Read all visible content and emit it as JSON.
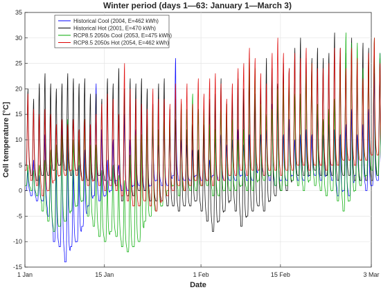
{
  "chart_data": {
    "type": "line",
    "title": "Winter period (days 1—63: January 1—March 3)",
    "xlabel": "Date",
    "ylabel": "Cell temperature [°C]",
    "xlim": [
      "2001-01-01",
      "2001-03-03"
    ],
    "x_tick_labels": [
      "1 Jan",
      "15 Jan",
      "1 Feb",
      "15 Feb",
      "3 Mar"
    ],
    "x_tick_dates": [
      "2001-01-01",
      "2001-01-15",
      "2001-02-01",
      "2001-02-15",
      "2001-03-03"
    ],
    "ylim": [
      -15,
      35
    ],
    "y_ticks": [
      -15,
      -10,
      -5,
      0,
      5,
      10,
      15,
      20,
      25,
      30,
      35
    ],
    "grid": true,
    "legend_position": "top-left",
    "sampling": "hourly",
    "series": [
      {
        "name": "Historical Cool (2004, E=462 kWh)",
        "color": "#0000ff",
        "daily_max": [
          4,
          6,
          3,
          11,
          5,
          4,
          13,
          10,
          4,
          5,
          8,
          13,
          21,
          12,
          6,
          10,
          5,
          15,
          10,
          12,
          17,
          13,
          15,
          9,
          12,
          12,
          26,
          10,
          9,
          8,
          8,
          11,
          6,
          10,
          11,
          9,
          10,
          12,
          9,
          11,
          18,
          11,
          12,
          17,
          17,
          11,
          14,
          10,
          11,
          12,
          11,
          15,
          11,
          13,
          12,
          11,
          13,
          16,
          11,
          13,
          16,
          23,
          27
        ],
        "daily_min": [
          0,
          -1,
          -2,
          -2,
          -5,
          -10,
          -11,
          -14,
          -11,
          -10,
          -7,
          -3,
          -1,
          -2,
          -1,
          0,
          2,
          0,
          0,
          1,
          1,
          0,
          1,
          2,
          1,
          1,
          3,
          2,
          2,
          2,
          3,
          2,
          2,
          3,
          2,
          2,
          2,
          2,
          3,
          2,
          2,
          4,
          3,
          2,
          1,
          2,
          2,
          3,
          2,
          2,
          3,
          3,
          2,
          3,
          2,
          -1,
          0,
          -1,
          3,
          2,
          0,
          1,
          2
        ]
      },
      {
        "name": "Historical Hot (2001, E=470 kWh)",
        "color": "#000000",
        "daily_max": [
          20,
          18,
          21,
          23,
          21,
          20,
          21,
          23,
          22,
          21,
          22,
          19,
          19,
          18,
          22,
          21,
          24,
          20,
          22,
          21,
          22,
          20,
          17,
          21,
          22,
          16,
          14,
          16,
          12,
          13,
          8,
          13,
          18,
          19,
          22,
          17,
          19,
          22,
          20,
          24,
          19,
          20,
          26,
          24,
          21,
          25,
          24,
          28,
          30,
          26,
          26,
          28,
          26,
          27,
          31,
          28,
          27,
          30,
          25,
          29,
          28,
          28,
          26
        ],
        "daily_min": [
          5,
          3,
          2,
          3,
          3,
          4,
          5,
          4,
          3,
          4,
          2,
          2,
          2,
          3,
          2,
          2,
          1,
          -2,
          -1,
          -1,
          0,
          0,
          -2,
          -2,
          -2,
          -3,
          -3,
          -4,
          -3,
          -3,
          -2,
          -4,
          -6,
          -8,
          -6,
          -4,
          -2,
          -4,
          -7,
          -5,
          -4,
          -3,
          -4,
          -2,
          -1,
          0,
          0,
          2,
          3,
          3,
          3,
          4,
          3,
          3,
          3,
          2,
          3,
          3,
          2,
          2,
          2,
          2,
          3
        ]
      },
      {
        "name": "RCP8.5 2050s Cool (2053, E=475 kWh)",
        "color": "#00aa00",
        "daily_max": [
          5,
          4,
          5,
          6,
          8,
          9,
          11,
          14,
          10,
          10,
          14,
          9,
          9,
          4,
          2,
          5,
          3,
          2,
          7,
          11,
          11,
          13,
          16,
          12,
          14,
          14,
          18,
          17,
          16,
          19,
          16,
          16,
          13,
          12,
          16,
          17,
          14,
          10,
          12,
          26,
          24,
          17,
          15,
          16,
          20,
          21,
          22,
          19,
          19,
          23,
          25,
          17,
          14,
          16,
          18,
          27,
          31,
          29,
          29,
          24,
          26,
          30,
          27
        ],
        "daily_min": [
          1,
          0,
          -1,
          -4,
          -6,
          -8,
          -7,
          -6,
          -4,
          -3,
          -2,
          -5,
          -7,
          -9,
          -10,
          -8,
          -9,
          -11,
          -12,
          -11,
          -10,
          -6,
          -5,
          -4,
          -3,
          0,
          1,
          -1,
          0,
          0,
          0,
          1,
          1,
          -1,
          -1,
          0,
          0,
          0,
          1,
          0,
          0,
          2,
          2,
          3,
          1,
          0,
          1,
          2,
          1,
          0,
          2,
          1,
          0,
          -1,
          0,
          -2,
          -4,
          -2,
          0,
          1,
          3,
          4,
          3
        ]
      },
      {
        "name": "RCP8.5 2050s Hot (2054, E=462 kWh)",
        "color": "#dd0000",
        "daily_max": [
          19,
          16,
          15,
          16,
          15,
          13,
          14,
          13,
          14,
          12,
          14,
          13,
          15,
          17,
          19,
          18,
          15,
          25,
          20,
          18,
          17,
          16,
          20,
          18,
          18,
          17,
          21,
          18,
          21,
          17,
          22,
          19,
          22,
          23,
          21,
          18,
          21,
          24,
          25,
          28,
          26,
          23,
          21,
          27,
          30,
          27,
          24,
          27,
          26,
          28,
          25,
          24,
          24,
          25,
          28,
          28,
          24,
          28,
          26,
          22,
          27,
          30,
          25
        ],
        "daily_min": [
          4,
          2,
          1,
          -1,
          0,
          2,
          3,
          3,
          4,
          3,
          2,
          1,
          2,
          1,
          0,
          1,
          0,
          -1,
          -2,
          -3,
          -3,
          -2,
          -3,
          -4,
          -2,
          -1,
          0,
          1,
          0,
          1,
          2,
          1,
          2,
          1,
          2,
          2,
          3,
          3,
          4,
          3,
          4,
          4,
          3,
          4,
          4,
          3,
          4,
          4,
          5,
          5,
          4,
          5,
          5,
          4,
          5,
          5,
          6,
          6,
          5,
          6,
          6,
          7,
          7
        ]
      }
    ]
  }
}
